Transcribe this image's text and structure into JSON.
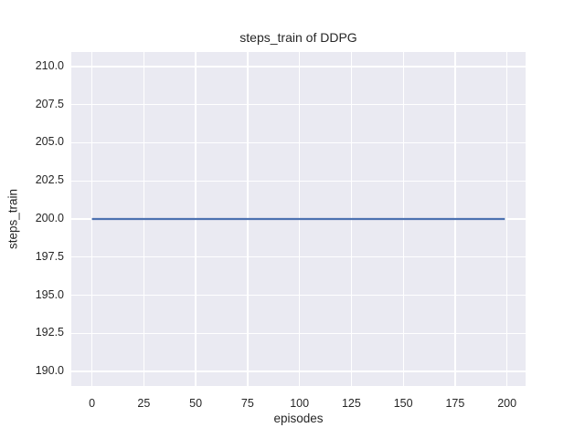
{
  "chart_data": {
    "type": "line",
    "title": "steps_train of DDPG",
    "xlabel": "episodes",
    "ylabel": "steps_train",
    "x_ticks": [
      0,
      25,
      50,
      75,
      100,
      125,
      150,
      175,
      200
    ],
    "x_tick_labels": [
      "0",
      "25",
      "50",
      "75",
      "100",
      "125",
      "150",
      "175",
      "200"
    ],
    "y_ticks": [
      190.0,
      192.5,
      195.0,
      197.5,
      200.0,
      202.5,
      205.0,
      207.5,
      210.0
    ],
    "y_tick_labels": [
      "190.0",
      "192.5",
      "195.0",
      "197.5",
      "200.0",
      "202.5",
      "205.0",
      "207.5",
      "210.0"
    ],
    "xlim": [
      -9.95,
      208.95
    ],
    "ylim": [
      189.05,
      210.95
    ],
    "grid": true,
    "legend": null,
    "series": [
      {
        "name": "steps_train",
        "color": "#4c72b0",
        "x": [
          0,
          199
        ],
        "y": [
          200,
          200
        ]
      }
    ],
    "colors": {
      "plot_background": "#eaeaf2",
      "grid": "#ffffff",
      "text": "#262626",
      "figure_background": "#ffffff"
    }
  }
}
